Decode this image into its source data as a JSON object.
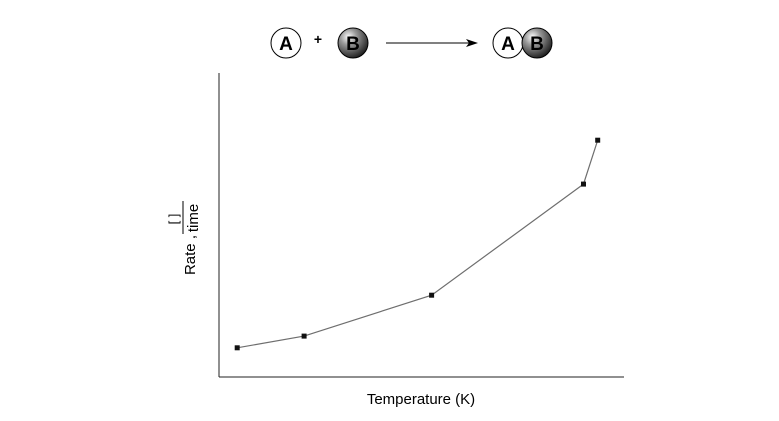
{
  "reaction": {
    "reactant_a": "A",
    "plus": "+",
    "reactant_b": "B",
    "product_a": "A",
    "product_b": "B"
  },
  "chart_data": {
    "type": "line",
    "xlabel": "Temperature (K)",
    "ylabel": {
      "prefix": "Rate ,",
      "numerator": "[ ]",
      "denominator": "time"
    },
    "x": [
      1,
      2,
      3,
      4,
      5
    ],
    "values": [
      0.06,
      0.1,
      0.24,
      0.62,
      0.77
    ],
    "xlim": [
      0.6,
      5.3
    ],
    "ylim": [
      -0.04,
      1.0
    ],
    "x_positions": [
      0.045,
      0.21,
      0.525,
      0.9,
      0.935
    ],
    "grid": false,
    "legend": "none",
    "colors": {
      "line": "#6e6e6e",
      "marker": "#111111",
      "axis": "#222222"
    }
  }
}
